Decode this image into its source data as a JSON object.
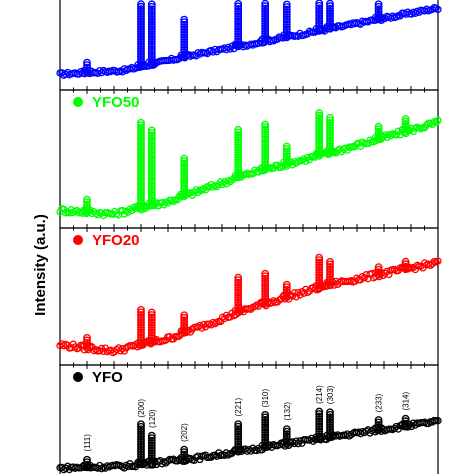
{
  "chart_data": {
    "type": "scatter",
    "ylabel": "Intensity (a.u.)",
    "x_domain": [
      10,
      80
    ],
    "y_domain": [
      0,
      1
    ],
    "grid": false,
    "legend_placement": "top-left of each panel",
    "peak_labels": [
      "(111)",
      "(200)",
      "(120)",
      "(202)",
      "(221)",
      "(310)",
      "(132)",
      "(214)",
      "(303)",
      "(233)",
      "(314)"
    ],
    "panels": [
      {
        "name": "",
        "color": "#0000ff",
        "baseline": [
          [
            10,
            0.1
          ],
          [
            22,
            0.15
          ],
          [
            35,
            0.35
          ],
          [
            50,
            0.55
          ],
          [
            65,
            0.75
          ],
          [
            80,
            0.95
          ]
        ],
        "peaks": [
          [
            15,
            0.15
          ],
          [
            25,
            0.95
          ],
          [
            27,
            0.9
          ],
          [
            33,
            0.5
          ],
          [
            43,
            0.85
          ],
          [
            48,
            0.75
          ],
          [
            52,
            0.5
          ],
          [
            58,
            0.9
          ],
          [
            60,
            0.8
          ],
          [
            69,
            0.35
          ]
        ]
      },
      {
        "name": "YFO50",
        "color": "#00ff00",
        "baseline": [
          [
            10,
            0.08
          ],
          [
            20,
            0.05
          ],
          [
            30,
            0.15
          ],
          [
            45,
            0.38
          ],
          [
            60,
            0.55
          ],
          [
            80,
            0.8
          ]
        ],
        "peaks": [
          [
            15,
            0.12
          ],
          [
            25,
            0.7
          ],
          [
            27,
            0.62
          ],
          [
            33,
            0.32
          ],
          [
            43,
            0.4
          ],
          [
            48,
            0.38
          ],
          [
            52,
            0.15
          ],
          [
            58,
            0.35
          ],
          [
            60,
            0.3
          ],
          [
            69,
            0.12
          ],
          [
            74,
            0.12
          ]
        ]
      },
      {
        "name": "YFO20",
        "color": "#ff0000",
        "baseline": [
          [
            10,
            0.1
          ],
          [
            20,
            0.05
          ],
          [
            30,
            0.15
          ],
          [
            45,
            0.4
          ],
          [
            60,
            0.6
          ],
          [
            80,
            0.78
          ]
        ],
        "peaks": [
          [
            15,
            0.1
          ],
          [
            25,
            0.3
          ],
          [
            27,
            0.25
          ],
          [
            33,
            0.15
          ],
          [
            43,
            0.3
          ],
          [
            48,
            0.25
          ],
          [
            52,
            0.12
          ],
          [
            58,
            0.25
          ],
          [
            60,
            0.2
          ],
          [
            69,
            0.08
          ],
          [
            74,
            0.08
          ]
        ]
      },
      {
        "name": "YFO",
        "color": "#000000",
        "baseline": [
          [
            10,
            0.02
          ],
          [
            22,
            0.04
          ],
          [
            35,
            0.12
          ],
          [
            50,
            0.25
          ],
          [
            65,
            0.38
          ],
          [
            80,
            0.5
          ]
        ],
        "peaks": [
          [
            15,
            0.1
          ],
          [
            25,
            0.42
          ],
          [
            27,
            0.3
          ],
          [
            33,
            0.12
          ],
          [
            43,
            0.3
          ],
          [
            48,
            0.35
          ],
          [
            52,
            0.18
          ],
          [
            58,
            0.3
          ],
          [
            60,
            0.28
          ],
          [
            69,
            0.12
          ],
          [
            74,
            0.1
          ]
        ]
      }
    ]
  }
}
